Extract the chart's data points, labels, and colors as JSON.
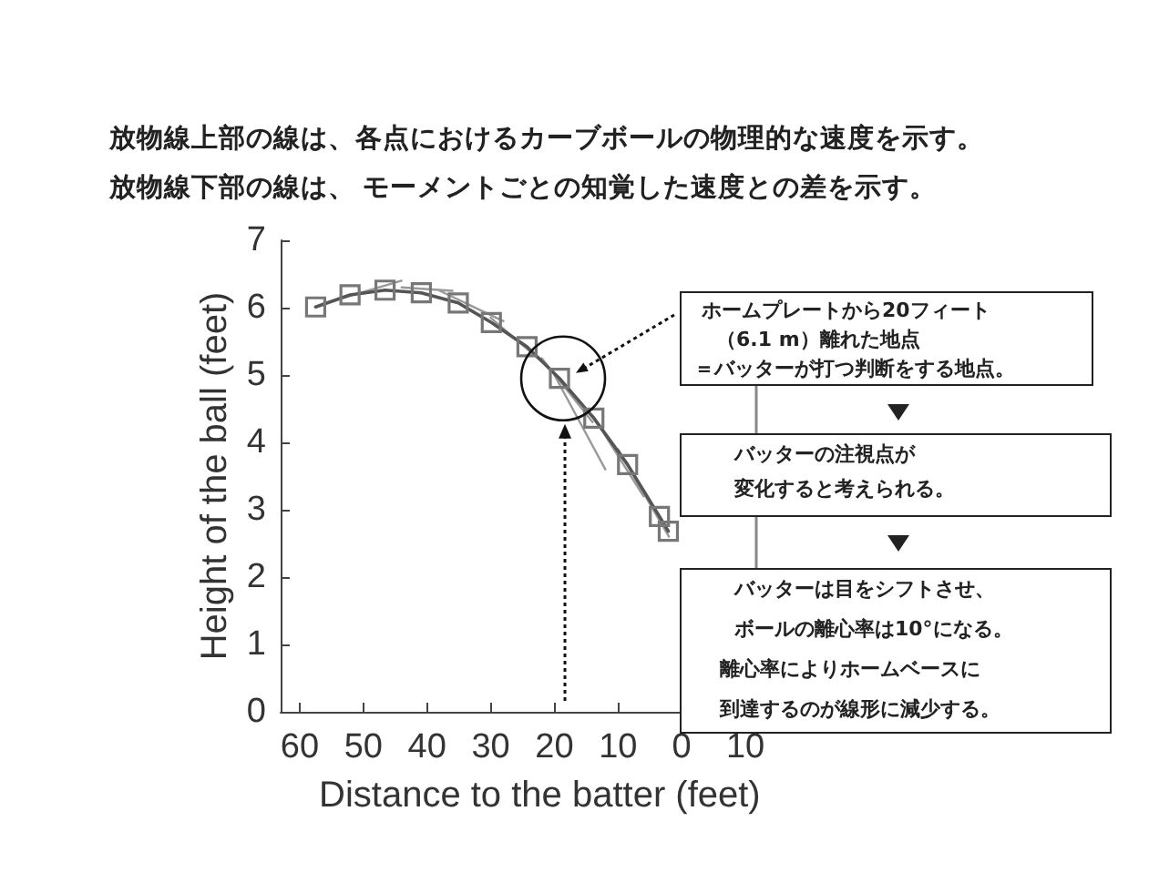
{
  "chart_data": {
    "type": "line",
    "title": "放物線上部の線は、各点におけるカーブボールの物理的な速度を示す。",
    "subtitle": "放物線下部の線は、 モーメントごとの知覚した速度との差を示す。",
    "xlabel": "Distance to the batter (feet)",
    "ylabel": "Height of the ball (feet)",
    "xlim": [
      63,
      -12
    ],
    "xticks": [
      60,
      50,
      40,
      30,
      20,
      10,
      0,
      {
        "value": -10,
        "label": "10"
      }
    ],
    "ylim": [
      0,
      7
    ],
    "yticks": [
      0,
      1,
      2,
      3,
      4,
      5,
      6,
      7
    ],
    "grid": false,
    "series": [
      {
        "color": "#555555",
        "marker": "square",
        "x": [
          57.5,
          52.1,
          46.6,
          40.9,
          35.1,
          29.9,
          24.3,
          19.2,
          13.8,
          8.5,
          3.5,
          2.1
        ],
        "values": [
          6.01,
          6.19,
          6.26,
          6.22,
          6.07,
          5.78,
          5.42,
          4.95,
          4.36,
          3.67,
          2.9,
          2.68
        ]
      },
      {
        "color": "#999999",
        "marker": "none",
        "x": [
          53,
          44,
          null,
          44,
          36,
          null,
          38,
          28,
          null,
          30,
          22,
          null,
          22,
          14,
          null,
          20,
          12,
          null,
          14,
          6,
          null,
          10,
          2
        ],
        "values": [
          6.15,
          6.4,
          null,
          6.3,
          6.25,
          null,
          6.25,
          5.8,
          null,
          5.85,
          5.2,
          null,
          5.25,
          4.3,
          null,
          5.0,
          3.6,
          null,
          4.4,
          3.2,
          null,
          3.9,
          2.6
        ]
      }
    ],
    "annotations": [
      "ホームプレートから20フィート",
      "（6.1 m）離れた地点",
      "＝バッターが打つ判断をする地点。",
      "バッターの注視点が",
      "変化すると考えられる。",
      "バッターは目をシフトさせ、",
      "ボールの離心率は10°になる。",
      "離心率によりホームベースに",
      "到達するのが線形に減少する。"
    ]
  }
}
